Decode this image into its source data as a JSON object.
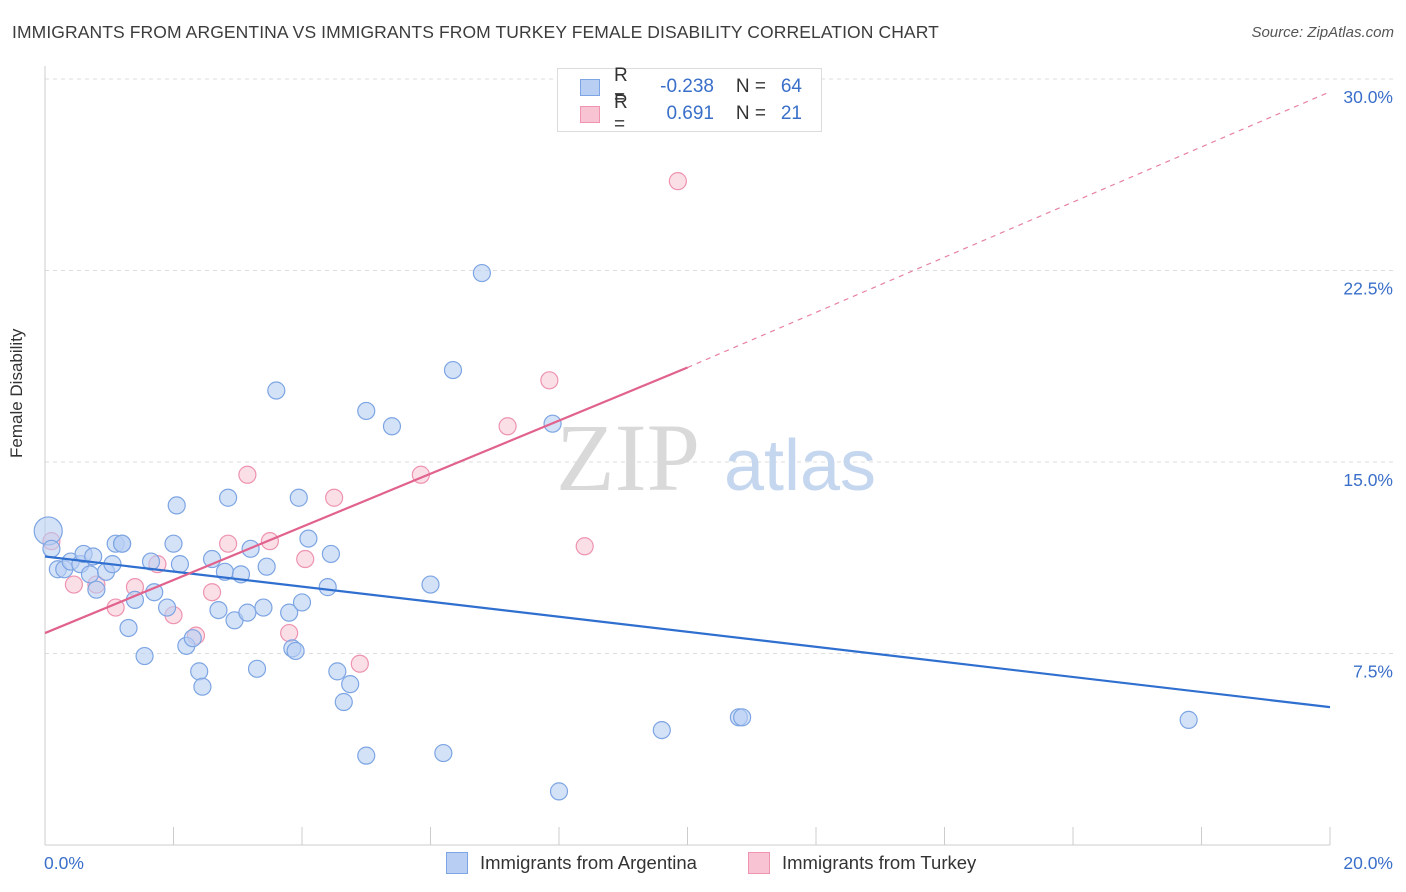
{
  "title": "IMMIGRANTS FROM ARGENTINA VS IMMIGRANTS FROM TURKEY FEMALE DISABILITY CORRELATION CHART",
  "source": "Source: ZipAtlas.com",
  "watermark": {
    "zip": "ZIP",
    "atlas": "atlas"
  },
  "legend": {
    "rows": [
      {
        "r_label": "R =",
        "r_value": "-0.238",
        "n_label": "N =",
        "n_value": "64"
      },
      {
        "r_label": "R =",
        "r_value": "0.691",
        "n_label": "N =",
        "n_value": "21"
      }
    ]
  },
  "colors": {
    "argentina_fill": "#b8cff3",
    "argentina_stroke": "#7da5e3",
    "argentina_line": "#2f6fcf",
    "turkey_fill": "#f8c4d4",
    "turkey_stroke": "#ee93b0",
    "turkey_line": "#e0628d",
    "grid": "#dddddd",
    "tick_text": "#3a6fc9"
  },
  "chart_data": {
    "type": "scatter",
    "xlabel": "",
    "ylabel": "Female Disability",
    "xlim": [
      0,
      20
    ],
    "ylim": [
      0,
      30
    ],
    "x_tick_labels": [
      "0.0%",
      "20.0%"
    ],
    "y_ticks": [
      7.5,
      15.0,
      22.5,
      30.0
    ],
    "y_tick_labels": [
      "7.5%",
      "15.0%",
      "22.5%",
      "30.0%"
    ],
    "grid": "horizontal dashed",
    "legend_position": "bottom",
    "series": [
      {
        "name": "Immigrants from Argentina",
        "color": "#b8cff3",
        "points": [
          [
            0.05,
            12.3
          ],
          [
            0.1,
            11.6
          ],
          [
            0.2,
            10.8
          ],
          [
            0.3,
            10.8
          ],
          [
            0.4,
            11.1
          ],
          [
            0.55,
            11.0
          ],
          [
            0.6,
            11.4
          ],
          [
            0.7,
            10.6
          ],
          [
            0.75,
            11.3
          ],
          [
            0.8,
            10.0
          ],
          [
            0.95,
            10.7
          ],
          [
            1.05,
            11.0
          ],
          [
            1.1,
            11.8
          ],
          [
            1.2,
            11.8
          ],
          [
            1.3,
            8.5
          ],
          [
            1.4,
            9.6
          ],
          [
            1.55,
            7.4
          ],
          [
            1.65,
            11.1
          ],
          [
            1.7,
            9.9
          ],
          [
            1.9,
            9.3
          ],
          [
            2.0,
            11.8
          ],
          [
            2.05,
            13.3
          ],
          [
            2.1,
            11.0
          ],
          [
            2.2,
            7.8
          ],
          [
            2.3,
            8.1
          ],
          [
            2.4,
            6.8
          ],
          [
            2.45,
            6.2
          ],
          [
            2.6,
            11.2
          ],
          [
            2.7,
            9.2
          ],
          [
            2.8,
            10.7
          ],
          [
            2.85,
            13.6
          ],
          [
            2.95,
            8.8
          ],
          [
            3.05,
            10.6
          ],
          [
            3.15,
            9.1
          ],
          [
            3.2,
            11.6
          ],
          [
            3.3,
            6.9
          ],
          [
            3.4,
            9.3
          ],
          [
            3.45,
            10.9
          ],
          [
            3.6,
            17.8
          ],
          [
            3.8,
            9.1
          ],
          [
            3.85,
            7.7
          ],
          [
            3.9,
            7.6
          ],
          [
            3.95,
            13.6
          ],
          [
            4.0,
            9.5
          ],
          [
            4.1,
            12.0
          ],
          [
            4.4,
            10.1
          ],
          [
            4.45,
            11.4
          ],
          [
            4.55,
            6.8
          ],
          [
            4.65,
            5.6
          ],
          [
            4.75,
            6.3
          ],
          [
            5.0,
            17.0
          ],
          [
            5.0,
            3.5
          ],
          [
            5.4,
            16.4
          ],
          [
            6.0,
            10.2
          ],
          [
            6.2,
            3.6
          ],
          [
            6.35,
            18.6
          ],
          [
            6.8,
            22.4
          ],
          [
            7.9,
            16.5
          ],
          [
            8.0,
            2.1
          ],
          [
            9.6,
            4.5
          ],
          [
            10.8,
            5.0
          ],
          [
            10.85,
            5.0
          ],
          [
            17.8,
            4.9
          ],
          [
            1.2,
            11.8
          ]
        ],
        "trend": {
          "x": [
            0,
            20
          ],
          "y": [
            11.3,
            5.4
          ]
        }
      },
      {
        "name": "Immigrants from Turkey",
        "color": "#f8c4d4",
        "points": [
          [
            0.1,
            11.9
          ],
          [
            0.45,
            10.2
          ],
          [
            0.8,
            10.2
          ],
          [
            1.1,
            9.3
          ],
          [
            1.4,
            10.1
          ],
          [
            1.75,
            11.0
          ],
          [
            2.0,
            9.0
          ],
          [
            2.35,
            8.2
          ],
          [
            2.6,
            9.9
          ],
          [
            2.85,
            11.8
          ],
          [
            3.15,
            14.5
          ],
          [
            3.5,
            11.9
          ],
          [
            3.8,
            8.3
          ],
          [
            4.05,
            11.2
          ],
          [
            4.5,
            13.6
          ],
          [
            4.9,
            7.1
          ],
          [
            5.85,
            14.5
          ],
          [
            7.2,
            16.4
          ],
          [
            7.85,
            18.2
          ],
          [
            8.4,
            11.7
          ],
          [
            9.85,
            26.0
          ]
        ],
        "trend": {
          "x": [
            0,
            10
          ],
          "y": [
            8.3,
            18.7
          ]
        },
        "trend_extension": {
          "x": [
            10,
            20
          ],
          "y": [
            18.7,
            29.5
          ]
        }
      }
    ]
  },
  "bottom_legend": {
    "argentina": "Immigrants from Argentina",
    "turkey": "Immigrants from Turkey"
  }
}
